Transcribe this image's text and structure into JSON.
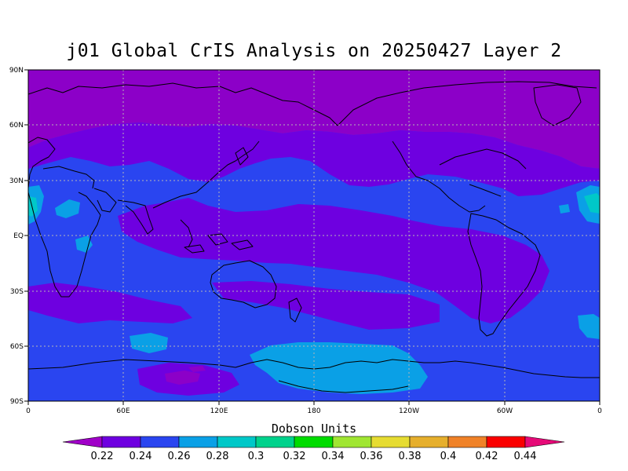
{
  "title": "j01 Global CrIS Analysis on 20250427 Layer 2",
  "colorbar_title": "Dobson Units",
  "y_axis_labels": [
    "90N",
    "60N",
    "30N",
    "EQ",
    "30S",
    "60S",
    "90S"
  ],
  "x_axis_labels": [
    "0",
    "60E",
    "120E",
    "180",
    "120W",
    "60W",
    "0"
  ],
  "colorbar_ticks": [
    "0.22",
    "0.24",
    "0.26",
    "0.28",
    "0.3",
    "0.32",
    "0.34",
    "0.36",
    "0.38",
    "0.4",
    "0.42",
    "0.44"
  ],
  "colorbar_colors": [
    "#a000c8",
    "#6e00e0",
    "#2a45f0",
    "#0aa0e6",
    "#00c8c8",
    "#00d28c",
    "#00dc00",
    "#a0e632",
    "#e6dc32",
    "#e6af2d",
    "#f08228",
    "#fa0000",
    "#e60a78"
  ],
  "legend_colors": {
    "purple": "#8c00c8",
    "violet": "#6e00e0",
    "blue": "#2a45f0",
    "light_blue": "#0aa0e6",
    "cyan": "#00c8c8"
  }
}
